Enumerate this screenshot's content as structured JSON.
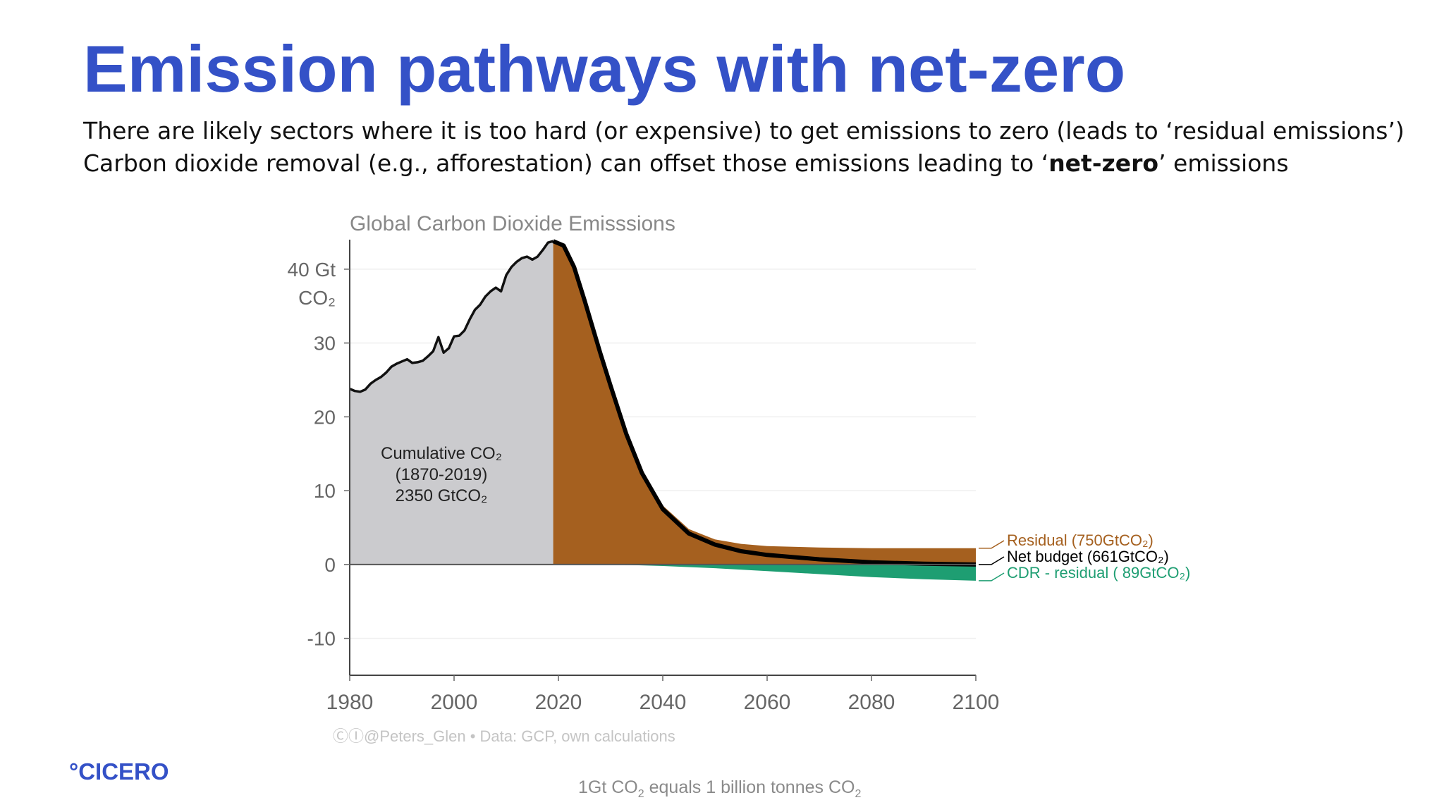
{
  "slide": {
    "title": "Emission pathways with net-zero",
    "subtitle_line1": "There are likely sectors where it is too hard (or expensive) to get emissions to zero (leads to ‘residual emissions’)",
    "subtitle_line2_pre": "Carbon dioxide removal (e.g., afforestation) can offset those emissions leading to ‘",
    "subtitle_line2_bold": "net-zero",
    "subtitle_line2_post": "’ emissions",
    "logo": "°CICERO",
    "footnote_a": "1Gt CO",
    "footnote_sub_a": "2",
    "footnote_b": " equals 1 billion tonnes CO",
    "footnote_sub_b": "2"
  },
  "chart_data": {
    "type": "area",
    "title": "Global Carbon Dioxide Emisssions",
    "y_unit_line1": "40 Gt",
    "y_unit_line2": "CO₂",
    "xlim": [
      1980,
      2100
    ],
    "ylim": [
      -15,
      44
    ],
    "x_ticks": [
      1980,
      2000,
      2020,
      2040,
      2060,
      2080,
      2100
    ],
    "y_ticks": [
      {
        "value": 40,
        "label": "40 Gt"
      },
      {
        "value": 30,
        "label": "30"
      },
      {
        "value": 20,
        "label": "20"
      },
      {
        "value": 10,
        "label": "10"
      },
      {
        "value": 0,
        "label": "0"
      },
      {
        "value": -10,
        "label": "-10"
      }
    ],
    "grid": true,
    "colors": {
      "historical": "#cbcbce",
      "residual": "#a5601f",
      "cdr": "#1e9e72",
      "net": "#000000"
    },
    "historical": {
      "x": [
        1980,
        1981,
        1982,
        1983,
        1984,
        1985,
        1986,
        1987,
        1988,
        1989,
        1990,
        1991,
        1992,
        1993,
        1994,
        1995,
        1996,
        1997,
        1998,
        1999,
        2000,
        2001,
        2002,
        2003,
        2004,
        2005,
        2006,
        2007,
        2008,
        2009,
        2010,
        2011,
        2012,
        2013,
        2014,
        2015,
        2016,
        2017,
        2018,
        2019
      ],
      "y": [
        23.8,
        23.5,
        23.4,
        23.7,
        24.5,
        25.0,
        25.4,
        26.0,
        26.8,
        27.2,
        27.5,
        27.8,
        27.3,
        27.4,
        27.6,
        28.2,
        28.9,
        30.8,
        28.7,
        29.3,
        30.9,
        31.0,
        31.7,
        33.2,
        34.5,
        35.2,
        36.3,
        37.0,
        37.5,
        37.0,
        39.2,
        40.3,
        41.0,
        41.5,
        41.7,
        41.3,
        41.7,
        42.6,
        43.6,
        43.8
      ]
    },
    "residual_top": {
      "x": [
        2019,
        2021,
        2023,
        2025,
        2028,
        2030,
        2033,
        2036,
        2040,
        2045,
        2050,
        2055,
        2060,
        2070,
        2080,
        2090,
        2100
      ],
      "y": [
        43.8,
        43.3,
        40.5,
        36.0,
        29.0,
        24.5,
        18.0,
        12.8,
        8.0,
        4.8,
        3.4,
        2.8,
        2.5,
        2.3,
        2.2,
        2.2,
        2.2
      ]
    },
    "net_line": {
      "x": [
        2019,
        2021,
        2023,
        2025,
        2028,
        2030,
        2033,
        2036,
        2040,
        2045,
        2050,
        2055,
        2060,
        2070,
        2080,
        2090,
        2100
      ],
      "y": [
        43.8,
        43.2,
        40.3,
        35.8,
        28.7,
        24.2,
        17.7,
        12.4,
        7.5,
        4.2,
        2.7,
        1.8,
        1.3,
        0.7,
        0.3,
        0.1,
        0.0
      ]
    },
    "cdr_bottom": {
      "x": [
        2030,
        2040,
        2050,
        2060,
        2070,
        2080,
        2090,
        2100
      ],
      "y": [
        0.0,
        -0.2,
        -0.5,
        -0.9,
        -1.3,
        -1.7,
        -2.0,
        -2.2
      ]
    },
    "annotation": {
      "line1": "Cumulative CO₂",
      "line2": "(1870-2019)",
      "line3": "2350 GtCO₂"
    },
    "legend": [
      {
        "key": "residual",
        "label": "Residual (750GtCO₂)"
      },
      {
        "key": "net",
        "label": "Net budget (661GtCO₂)"
      },
      {
        "key": "cdr",
        "label": "CDR - residual ( 89GtCO₂)"
      }
    ],
    "credit": "ⒸⒾ@Peters_Glen  •  Data: GCP, own calculations"
  }
}
